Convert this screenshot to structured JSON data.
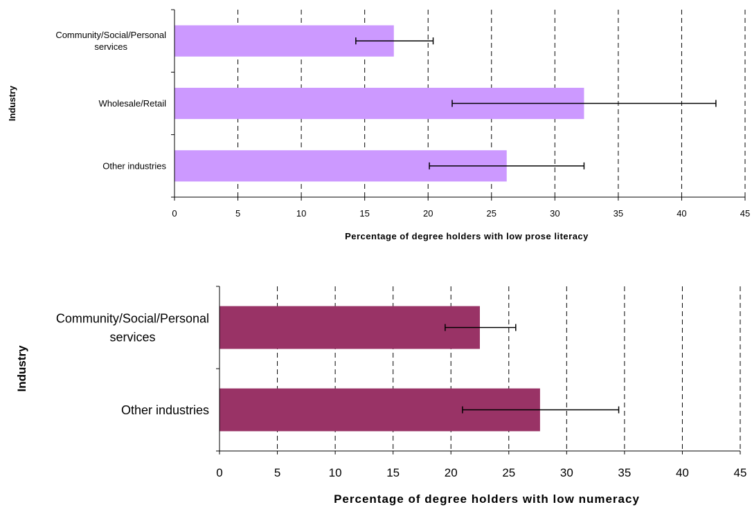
{
  "chart_data": [
    {
      "type": "bar",
      "orientation": "horizontal",
      "categories": [
        "Community/Social/Personal services",
        "Wholesale/Retail",
        "Other industries"
      ],
      "category_lines": [
        [
          "Community/Social/Personal",
          "services"
        ],
        [
          "Wholesale/Retail"
        ],
        [
          "Other industries"
        ]
      ],
      "values": [
        17.3,
        32.3,
        26.2
      ],
      "error_low": [
        14.3,
        21.9,
        20.1
      ],
      "error_high": [
        20.4,
        42.7,
        32.3
      ],
      "xlabel": "Percentage of degree holders with low prose literacy",
      "ylabel": "Industry",
      "xlim": [
        0,
        45
      ],
      "xticks": [
        0,
        5,
        10,
        15,
        20,
        25,
        30,
        35,
        40,
        45
      ],
      "grid": "vertical dashed",
      "bar_color": "#cc99ff"
    },
    {
      "type": "bar",
      "orientation": "horizontal",
      "categories": [
        "Community/Social/Personal services",
        "Other industries"
      ],
      "category_lines": [
        [
          "Community/Social/Personal",
          "services"
        ],
        [
          "Other industries"
        ]
      ],
      "values": [
        22.5,
        27.7
      ],
      "error_low": [
        19.5,
        21.0
      ],
      "error_high": [
        25.6,
        34.5
      ],
      "xlabel": "Percentage of degree holders with low numeracy",
      "ylabel": "Industry",
      "xlim": [
        0,
        45
      ],
      "xticks": [
        0,
        5,
        10,
        15,
        20,
        25,
        30,
        35,
        40,
        45
      ],
      "grid": "vertical dashed",
      "bar_color": "#993366"
    }
  ]
}
